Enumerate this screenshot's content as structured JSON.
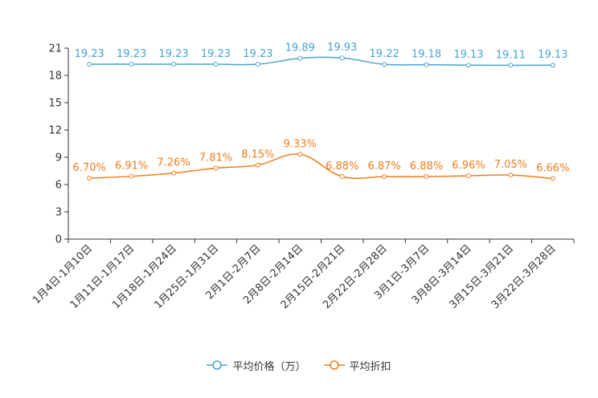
{
  "chart_data": {
    "type": "line",
    "title": "",
    "xlabel": "",
    "ylabel": "",
    "categories": [
      "1月4日-1月10日",
      "1月11日-1月17日",
      "1月18日-1月24日",
      "1月25日-1月31日",
      "2月1日-2月7日",
      "2月8日-2月14日",
      "2月15日-2月21日",
      "2月22日-2月28日",
      "3月1日-3月7日",
      "3月8日-3月14日",
      "3月15日-3月21日",
      "3月22日-3月28日"
    ],
    "ylim": [
      0,
      21
    ],
    "yticks": [
      "0",
      "3",
      "6",
      "9",
      "12",
      "15",
      "18",
      "21"
    ],
    "grid": false,
    "legend_position": "bottom-center",
    "series": [
      {
        "name": "平均价格（万）",
        "color": "#4aa3d0",
        "values": [
          19.23,
          19.23,
          19.23,
          19.23,
          19.23,
          19.89,
          19.93,
          19.22,
          19.18,
          19.13,
          19.11,
          19.13
        ],
        "labels": [
          "19.23",
          "19.23",
          "19.23",
          "19.23",
          "19.23",
          "19.89",
          "19.93",
          "19.22",
          "19.18",
          "19.13",
          "19.11",
          "19.13"
        ]
      },
      {
        "name": "平均折扣",
        "color": "#f07c1c",
        "values": [
          6.7,
          6.91,
          7.26,
          7.81,
          8.15,
          9.33,
          6.88,
          6.87,
          6.88,
          6.96,
          7.05,
          6.66
        ],
        "labels": [
          "6.70%",
          "6.91%",
          "7.26%",
          "7.81%",
          "8.15%",
          "9.33%",
          "6.88%",
          "6.87%",
          "6.88%",
          "6.96%",
          "7.05%",
          "6.66%"
        ]
      }
    ]
  }
}
